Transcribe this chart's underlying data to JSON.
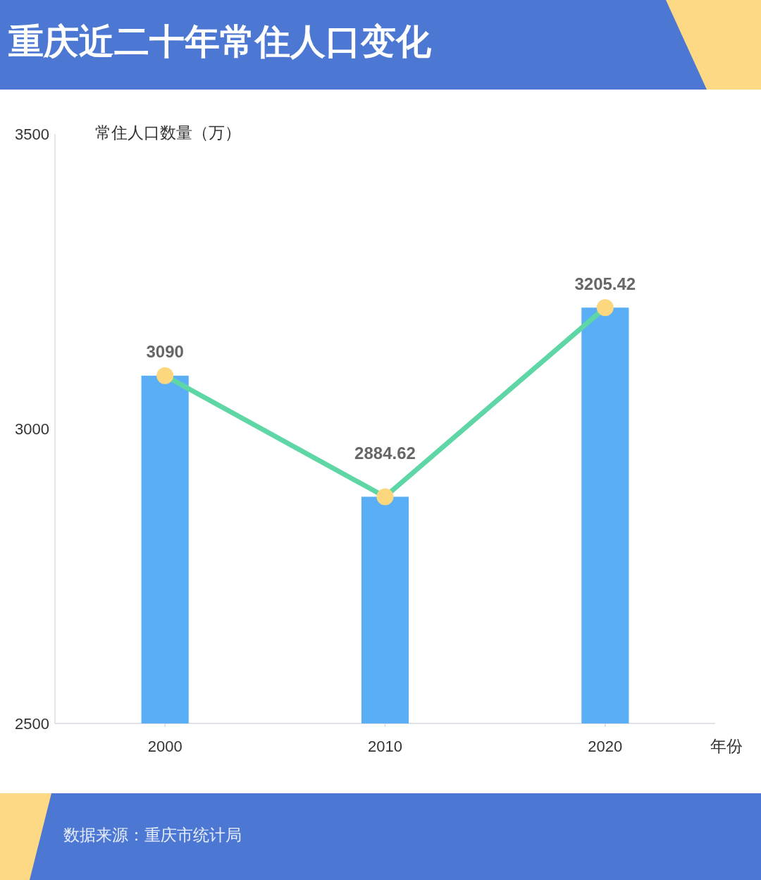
{
  "chart_data": {
    "type": "bar",
    "title": "重庆近二十年常住人口变化",
    "ylabel": "常住人口数量（万）",
    "xlabel": "年份",
    "categories": [
      "2000",
      "2010",
      "2020"
    ],
    "series": [
      {
        "color": "#5aaef5",
        "values": [
          3090,
          2884.62,
          3205.42
        ]
      },
      {
        "type": "line",
        "color": "#5fd6a6",
        "colors": [
          "#fcd77e",
          "#fcd77e",
          "#fcd77e"
        ],
        "marker": "circle",
        "values": [
          3090,
          2884.62,
          3205.42
        ],
        "value_labels": [
          "3090",
          "2884.62",
          "3205.42"
        ]
      }
    ],
    "ylim": [
      2500,
      3500
    ],
    "yticks": [
      2500,
      3000,
      3500
    ],
    "annotations": [
      "数据来源：重庆市统计局"
    ]
  }
}
